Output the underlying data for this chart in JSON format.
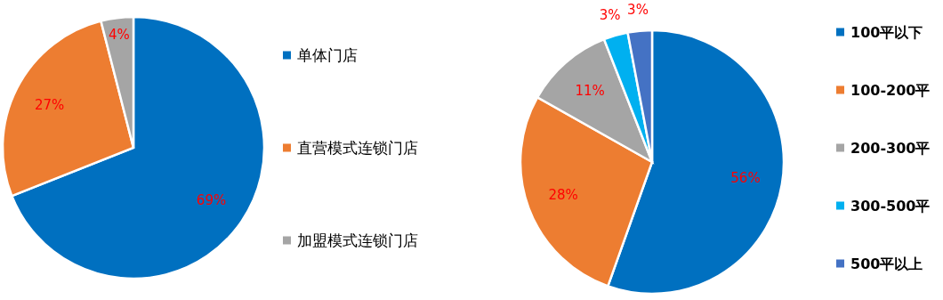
{
  "chart_data": [
    {
      "type": "pie",
      "categories": [
        "单体门店",
        "直营模式连锁门店",
        "加盟模式连锁门店"
      ],
      "values": [
        69,
        27,
        4
      ],
      "colors": [
        "#0070c0",
        "#ed7d31",
        "#a5a5a5"
      ],
      "value_labels": [
        "69%",
        "27%",
        "4%"
      ],
      "legend": "right"
    },
    {
      "type": "pie",
      "categories": [
        "100平以下",
        "100-200平",
        "200-300平",
        "300-500平",
        "500平以上"
      ],
      "values": [
        56,
        28,
        11,
        3,
        3
      ],
      "colors": [
        "#0070c0",
        "#ed7d31",
        "#a5a5a5",
        "#00b0f0",
        "#4472c4"
      ],
      "value_labels": [
        "56%",
        "28%",
        "11%",
        "3%",
        "3%"
      ],
      "legend": "right"
    }
  ]
}
